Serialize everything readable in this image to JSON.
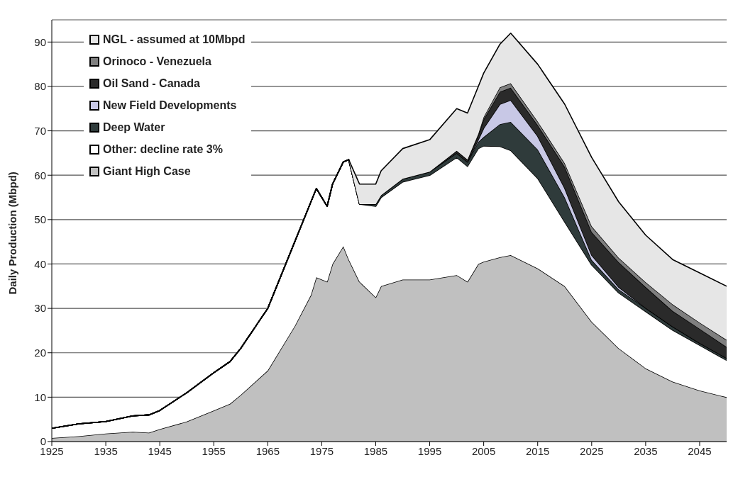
{
  "chart_data": {
    "type": "area",
    "stacked": true,
    "ylabel": "Daily Production (Mbpd)",
    "x": [
      1925,
      1930,
      1935,
      1940,
      1943,
      1945,
      1950,
      1955,
      1958,
      1960,
      1965,
      1970,
      1973,
      1974,
      1976,
      1977,
      1979,
      1980,
      1982,
      1985,
      1986,
      1990,
      1995,
      2000,
      2002,
      2004,
      2005,
      2008,
      2010,
      2015,
      2020,
      2025,
      2030,
      2035,
      2040,
      2045,
      2050
    ],
    "series": [
      {
        "name": "Giant High Case",
        "color": "#c0c0c0",
        "values": [
          0.8,
          1.2,
          1.8,
          2.2,
          2.0,
          2.8,
          4.5,
          7,
          8.5,
          10.5,
          16,
          26,
          33,
          37,
          36,
          40,
          44,
          41,
          36,
          32.5,
          35,
          36.5,
          36.5,
          37.5,
          36,
          40,
          40.5,
          41.5,
          42,
          39,
          35,
          27,
          21,
          16.5,
          13.5,
          11.5,
          10
        ]
      },
      {
        "name": "Other: decline rate 3%",
        "color": "#ffffff",
        "values": [
          2.2,
          2.8,
          2.7,
          3.6,
          4,
          4.2,
          6.5,
          8.5,
          9.5,
          10.5,
          14,
          19,
          21,
          20,
          17,
          18,
          19,
          22.5,
          17.5,
          20.5,
          20,
          22,
          23.5,
          26.5,
          26,
          26,
          26.1,
          25,
          23.6,
          20.3,
          14.5,
          12.8,
          12.5,
          12.8,
          11.6,
          10.2,
          8.3
        ]
      },
      {
        "name": "Deep Water",
        "color": "#2f3b3b",
        "values": [
          0,
          0,
          0,
          0,
          0,
          0,
          0,
          0,
          0,
          0,
          0,
          0,
          0,
          0,
          0,
          0,
          0,
          0,
          0,
          0.5,
          0.5,
          0.7,
          0.8,
          1,
          1,
          1.5,
          2,
          5,
          6.4,
          6.5,
          5.5,
          1.1,
          0.8,
          0.8,
          0.8,
          0.5,
          0.5
        ]
      },
      {
        "name": "New Field Developments",
        "color": "#c8c8e6",
        "values": [
          0,
          0,
          0,
          0,
          0,
          0,
          0,
          0,
          0,
          0,
          0,
          0,
          0,
          0,
          0,
          0,
          0,
          0,
          0,
          0,
          0,
          0,
          0,
          0,
          0,
          0.5,
          2,
          4.5,
          4.9,
          3,
          2.1,
          1.1,
          0.5,
          0,
          0,
          0,
          0
        ]
      },
      {
        "name": "Oil Sand - Canada",
        "color": "#2a2a2a",
        "values": [
          0,
          0,
          0,
          0,
          0,
          0,
          0,
          0,
          0,
          0,
          0,
          0,
          0,
          0,
          0,
          0,
          0,
          0,
          0,
          0,
          0,
          0,
          0,
          0.5,
          0.5,
          1,
          2,
          2.8,
          2.8,
          2.5,
          4.8,
          5.2,
          5.6,
          4.7,
          3.5,
          3.2,
          2.5
        ]
      },
      {
        "name": "Orinoco - Venezuela",
        "color": "#7f7f7f",
        "values": [
          0,
          0,
          0,
          0,
          0,
          0,
          0,
          0,
          0,
          0,
          0,
          0,
          0,
          0,
          0,
          0,
          0,
          0,
          0,
          0,
          0,
          0,
          0,
          0,
          0,
          0.3,
          0.5,
          1,
          1,
          0.8,
          0.8,
          1.3,
          1,
          1.1,
          1.5,
          1.4,
          1.6
        ]
      },
      {
        "name": "NGL - assumed at 10Mbpd",
        "color": "#e6e6e6",
        "values": [
          0,
          0,
          0,
          0,
          0,
          0,
          0,
          0,
          0,
          0,
          0,
          0,
          0,
          0,
          0,
          0,
          0,
          0,
          4.5,
          4.5,
          5.5,
          6.8,
          7.2,
          9.5,
          10.5,
          10.7,
          9.9,
          9.7,
          11.3,
          12.9,
          13.3,
          15.5,
          12.6,
          10.6,
          10.1,
          11.2,
          12.1
        ]
      }
    ],
    "xlim": [
      1925,
      2050
    ],
    "xticks": [
      1925,
      1935,
      1945,
      1955,
      1965,
      1975,
      1985,
      1995,
      2005,
      2015,
      2025,
      2035,
      2045
    ],
    "ylim": [
      0,
      95
    ],
    "yticks": [
      0,
      10,
      20,
      30,
      40,
      50,
      60,
      70,
      80,
      90
    ],
    "grid": "y",
    "legend": "top left"
  }
}
